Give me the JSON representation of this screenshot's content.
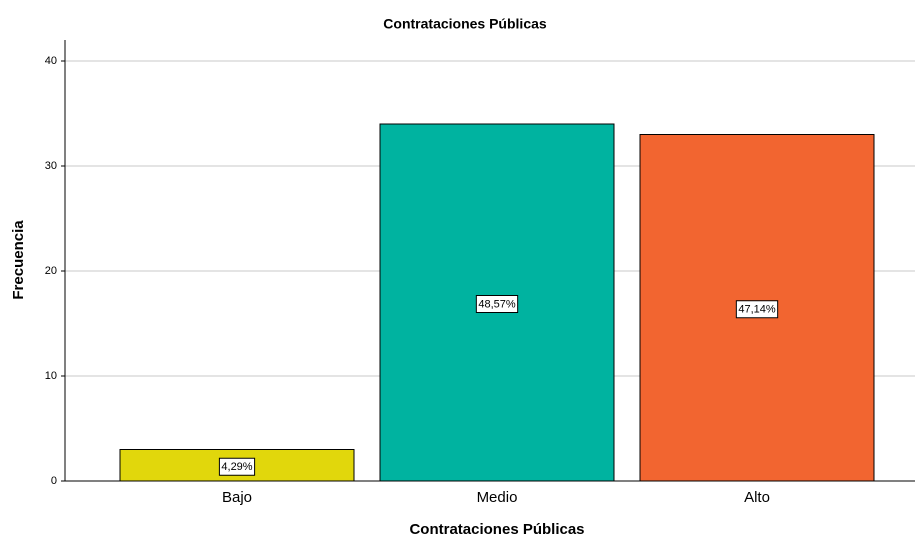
{
  "chart_data": {
    "type": "bar",
    "title": "Contrataciones Públicas",
    "x_label": "Contrataciones Públicas",
    "y_label": "Frecuencia",
    "categories": [
      "Bajo",
      "Medio",
      "Alto"
    ],
    "values": [
      3,
      34,
      33
    ],
    "colors": [
      "#e1d70c",
      "#00b3a0",
      "#f26530"
    ],
    "percentages": [
      4.29,
      48.57,
      47.14
    ],
    "percentage_labels": [
      "4,29%",
      "48,57%",
      "47,14%"
    ],
    "ylim": [
      0,
      42
    ],
    "yticks": [
      0,
      10,
      20,
      30,
      40
    ],
    "grid": true
  }
}
